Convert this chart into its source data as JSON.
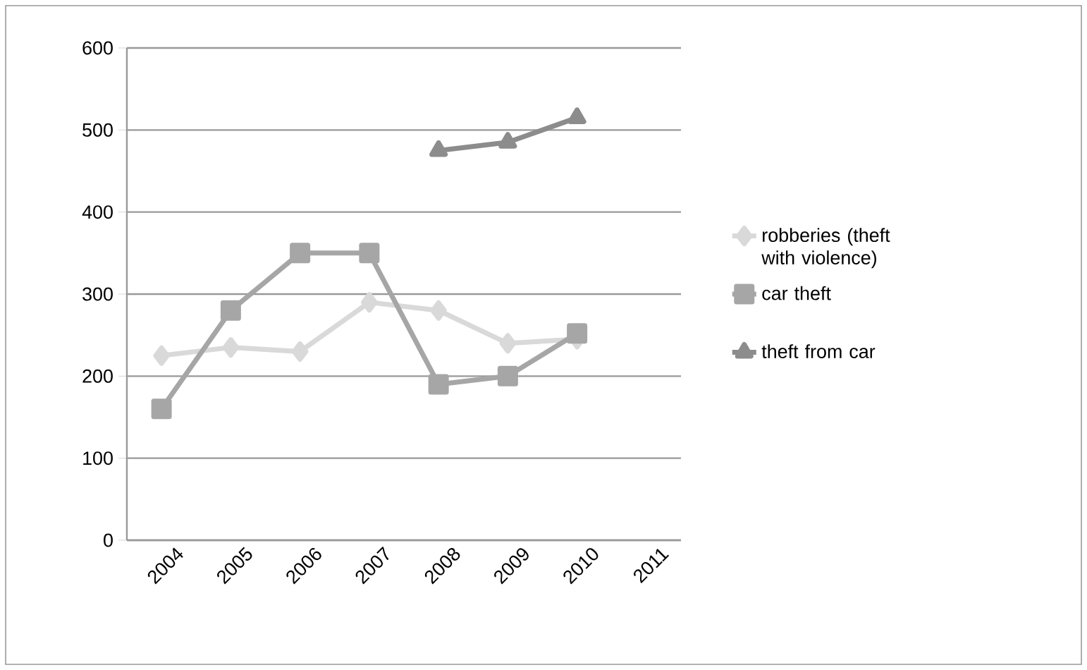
{
  "chart_data": {
    "type": "line",
    "categories": [
      "2004",
      "2005",
      "2006",
      "2007",
      "2008",
      "2009",
      "2010",
      "2011"
    ],
    "series": [
      {
        "name": "robberies (theft with violence)",
        "color": "#d9d9d9",
        "marker": "diamond",
        "values": [
          225,
          235,
          230,
          290,
          280,
          240,
          245,
          null
        ]
      },
      {
        "name": "car theft",
        "color": "#a6a6a6",
        "marker": "square",
        "values": [
          160,
          280,
          350,
          350,
          190,
          200,
          252,
          null
        ]
      },
      {
        "name": "theft from car",
        "color": "#8c8c8c",
        "marker": "triangle",
        "values": [
          null,
          null,
          null,
          null,
          475,
          485,
          515,
          null
        ]
      }
    ],
    "ylim": [
      0,
      600
    ],
    "yticks": [
      0,
      100,
      200,
      300,
      400,
      500,
      600
    ],
    "grid": "y",
    "legend": "right",
    "line_style": "solid"
  }
}
